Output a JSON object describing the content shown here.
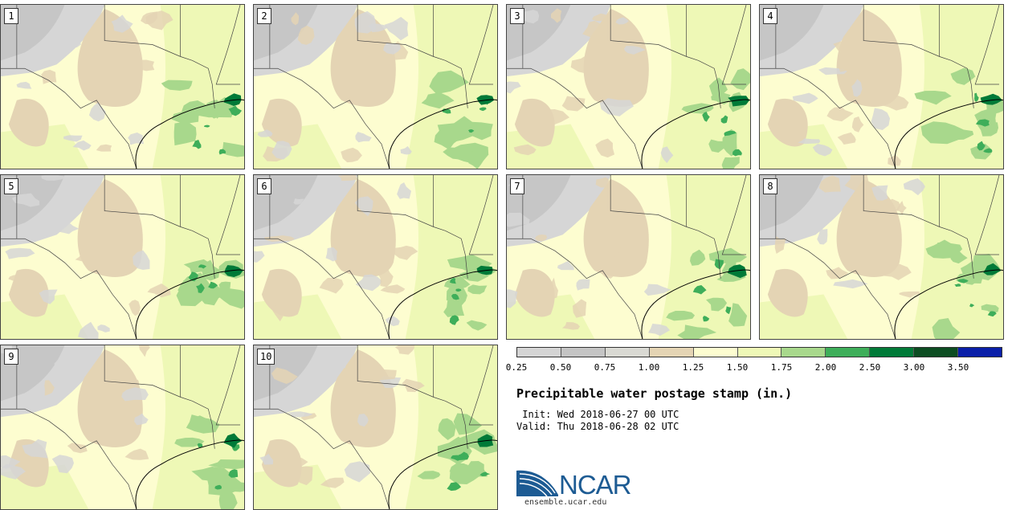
{
  "panels": [
    {
      "label": "1",
      "seed": 11
    },
    {
      "label": "2",
      "seed": 23
    },
    {
      "label": "3",
      "seed": 37
    },
    {
      "label": "4",
      "seed": 41
    },
    {
      "label": "5",
      "seed": 53
    },
    {
      "label": "6",
      "seed": 67
    },
    {
      "label": "7",
      "seed": 71
    },
    {
      "label": "8",
      "seed": 89
    },
    {
      "label": "9",
      "seed": 97
    },
    {
      "label": "10",
      "seed": 103
    }
  ],
  "colorbar": {
    "ticks": [
      "0.25",
      "0.50",
      "0.75",
      "1.00",
      "1.25",
      "1.50",
      "1.75",
      "2.00",
      "2.50",
      "3.00",
      "3.50"
    ],
    "colors": [
      "#d4d4d4",
      "#c4c4c4",
      "#d9d9d3",
      "#e4d4b4",
      "#fdfdd0",
      "#eef8b6",
      "#a8d88c",
      "#3eae5a",
      "#007a38",
      "#0c4d22",
      "#0a1fa8"
    ]
  },
  "title": "Precipitable water postage stamp (in.)",
  "init": " Init: Wed 2018-06-27 00 UTC",
  "valid": "Valid: Thu 2018-06-28 02 UTC",
  "logo": {
    "text": "NCAR",
    "url": "ensemble.ucar.edu"
  }
}
